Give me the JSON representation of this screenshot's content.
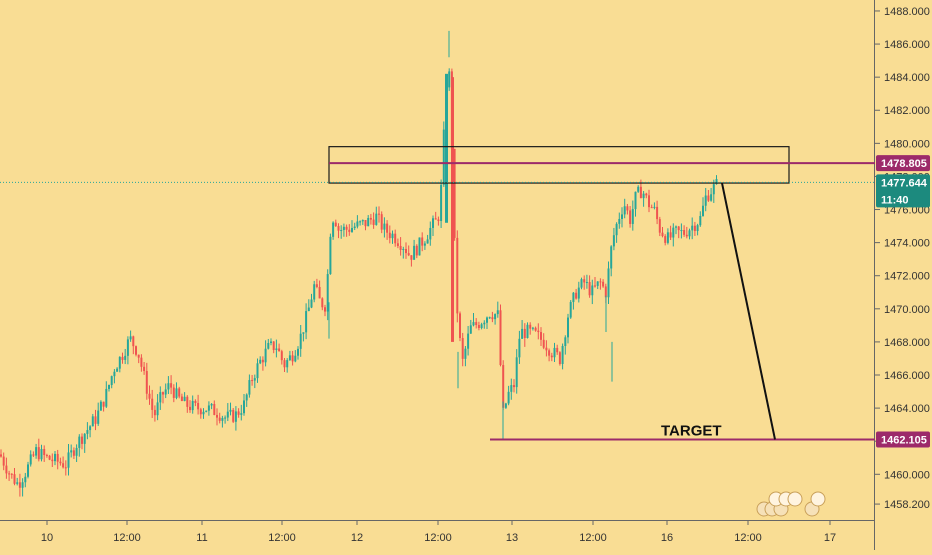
{
  "chart_data": {
    "type": "candlestick",
    "x_tick_labels": [
      "10",
      "12:00",
      "11",
      "12:00",
      "12",
      "12:00",
      "13",
      "12:00",
      "16",
      "12:00",
      "17"
    ],
    "y_ticks": [
      1458.2,
      1460,
      1462,
      1464,
      1466,
      1468,
      1470,
      1472,
      1474,
      1476,
      1478,
      1480,
      1482,
      1484,
      1486,
      1488
    ],
    "y_tick_labels": [
      "1458.200",
      "1460.000",
      "1462.000",
      "1464.000",
      "1466.000",
      "1468.000",
      "1470.000",
      "1472.000",
      "1474.000",
      "1476.000",
      "1478.000",
      "1480.000",
      "1482.000",
      "1484.000",
      "1486.000",
      "1488.000"
    ],
    "ylim": [
      1457.6,
      1488.3
    ],
    "price_levels": {
      "resistance": "1478.805",
      "current_price": "1477.644",
      "countdown": "11:40",
      "target": "1462.105"
    },
    "target_label": "TARGET",
    "resistance_zone": [
      1477.6,
      1479.8
    ],
    "colors": {
      "background": "#f9dd94",
      "up_candle": "#26a69a",
      "down_candle": "#ef5350",
      "level_line": "#9c2a6a",
      "current_price_label": "#1c8a7e"
    },
    "price_path": [
      [
        0,
        1461.2
      ],
      [
        10,
        1460.0
      ],
      [
        18,
        1459.4
      ],
      [
        26,
        1460.2
      ],
      [
        36,
        1461.4
      ],
      [
        46,
        1461.0
      ],
      [
        56,
        1460.8
      ],
      [
        66,
        1460.6
      ],
      [
        76,
        1461.8
      ],
      [
        86,
        1462.6
      ],
      [
        96,
        1463.4
      ],
      [
        106,
        1464.8
      ],
      [
        114,
        1466.4
      ],
      [
        122,
        1467.2
      ],
      [
        130,
        1468.2
      ],
      [
        138,
        1467.4
      ],
      [
        146,
        1465.4
      ],
      [
        154,
        1463.5
      ],
      [
        162,
        1464.8
      ],
      [
        170,
        1465.4
      ],
      [
        178,
        1464.6
      ],
      [
        186,
        1464.2
      ],
      [
        196,
        1464.0
      ],
      [
        206,
        1464.0
      ],
      [
        216,
        1463.8
      ],
      [
        226,
        1463.4
      ],
      [
        236,
        1463.6
      ],
      [
        244,
        1464.2
      ],
      [
        252,
        1465.8
      ],
      [
        260,
        1466.8
      ],
      [
        268,
        1467.6
      ],
      [
        276,
        1467.8
      ],
      [
        284,
        1466.6
      ],
      [
        292,
        1467.2
      ],
      [
        300,
        1468.2
      ],
      [
        308,
        1469.8
      ],
      [
        314,
        1471.4
      ],
      [
        320,
        1470.4
      ],
      [
        326,
        1470.2
      ],
      [
        330,
        1474.6
      ],
      [
        334,
        1475.8
      ],
      [
        338,
        1474.8
      ],
      [
        346,
        1474.8
      ],
      [
        356,
        1475.0
      ],
      [
        366,
        1475.2
      ],
      [
        376,
        1475.6
      ],
      [
        384,
        1474.8
      ],
      [
        394,
        1474.4
      ],
      [
        404,
        1473.8
      ],
      [
        410,
        1473.2
      ],
      [
        416,
        1473.6
      ],
      [
        424,
        1474.2
      ],
      [
        432,
        1475.0
      ],
      [
        438,
        1475.4
      ],
      [
        442,
        1477.8
      ],
      [
        446,
        1483.6
      ],
      [
        450,
        1484.2
      ],
      [
        453,
        1477.4
      ],
      [
        456,
        1470.8
      ],
      [
        462,
        1466.6
      ],
      [
        470,
        1468.8
      ],
      [
        480,
        1469.2
      ],
      [
        490,
        1469.8
      ],
      [
        498,
        1469.6
      ],
      [
        503,
        1463.6
      ],
      [
        508,
        1464.8
      ],
      [
        514,
        1465.4
      ],
      [
        520,
        1468.6
      ],
      [
        528,
        1468.6
      ],
      [
        536,
        1468.4
      ],
      [
        544,
        1468.0
      ],
      [
        552,
        1467.4
      ],
      [
        560,
        1467.0
      ],
      [
        568,
        1469.6
      ],
      [
        576,
        1471.0
      ],
      [
        584,
        1471.6
      ],
      [
        592,
        1471.0
      ],
      [
        600,
        1471.6
      ],
      [
        606,
        1471.0
      ],
      [
        612,
        1474.0
      ],
      [
        618,
        1475.4
      ],
      [
        624,
        1476.4
      ],
      [
        630,
        1475.4
      ],
      [
        636,
        1476.8
      ],
      [
        642,
        1477.2
      ],
      [
        648,
        1476.4
      ],
      [
        654,
        1476.0
      ],
      [
        660,
        1474.8
      ],
      [
        668,
        1474.2
      ],
      [
        676,
        1474.6
      ],
      [
        684,
        1474.6
      ],
      [
        692,
        1475.0
      ],
      [
        700,
        1475.4
      ],
      [
        706,
        1476.8
      ],
      [
        712,
        1477.2
      ],
      [
        718,
        1477.6
      ]
    ],
    "extreme_wicks": [
      [
        449,
        1485.2,
        1486.8
      ],
      [
        458,
        1465.2,
        1467.4
      ],
      [
        503,
        1462.1,
        1464.4
      ],
      [
        606,
        1468.6,
        1470.8
      ],
      [
        612,
        1465.6,
        1468.0
      ],
      [
        329,
        1468.2,
        1470.4
      ]
    ]
  }
}
